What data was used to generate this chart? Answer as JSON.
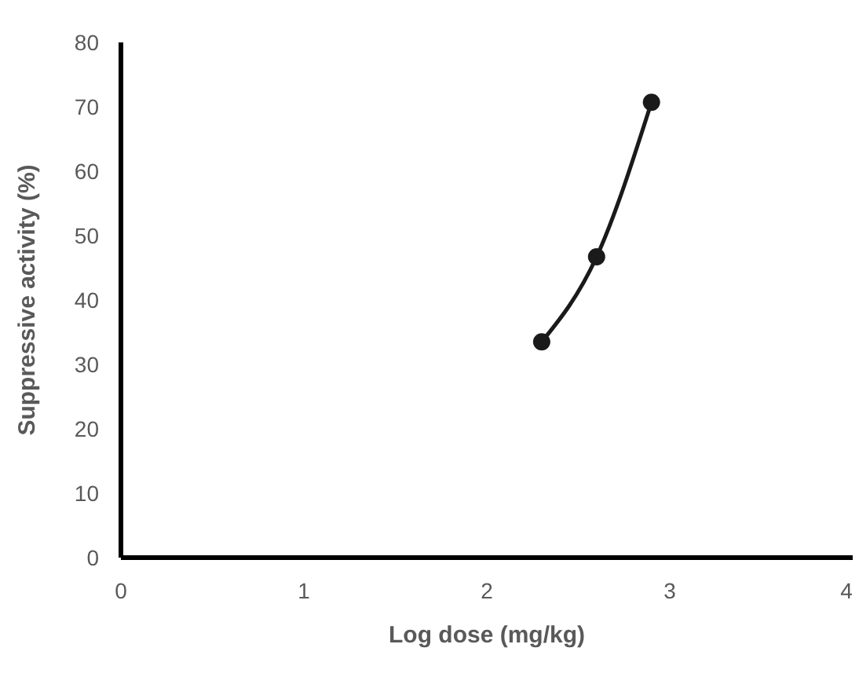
{
  "chart_data": {
    "type": "line",
    "xlabel": "Log dose (mg/kg)",
    "ylabel": "Suppressive activity (%)",
    "series": [
      {
        "color": "#1a1a1a",
        "x": [
          2.3,
          2.6,
          2.9
        ],
        "values": [
          33.5,
          46.7,
          70.7
        ]
      }
    ],
    "xlim": [
      0,
      4
    ],
    "xticks": [
      0,
      1,
      2,
      3,
      4
    ],
    "ylim": [
      0,
      80
    ],
    "yticks": [
      0,
      10,
      20,
      30,
      40,
      50,
      60,
      70,
      80
    ],
    "marker": "circle",
    "line_style": "solid",
    "grid": false
  }
}
